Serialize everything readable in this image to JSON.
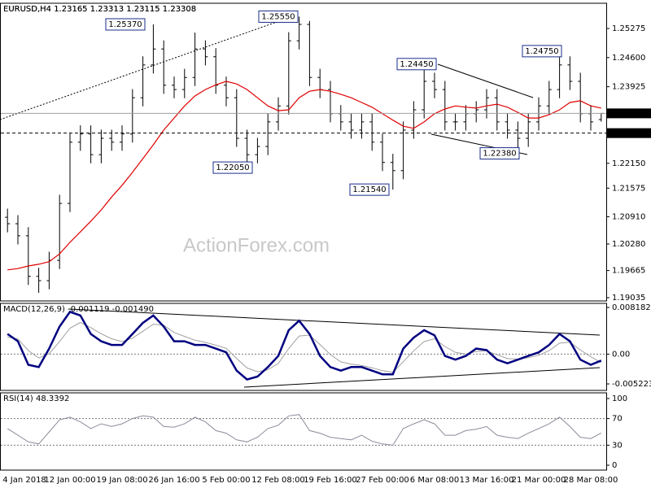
{
  "chart_data": [
    {
      "type": "ohlc",
      "title": "EURUSD,H4  1.23165 1.23313 1.23115 1.23308",
      "watermark": "ActionForex.com",
      "color": "#000000",
      "categories": [
        null,
        "4 Jan 2018",
        null,
        null,
        null,
        null,
        "12 Jan 00:00",
        null,
        null,
        null,
        null,
        "19 Jan 08:00",
        null,
        null,
        null,
        null,
        "26 Jan 16:00",
        null,
        null,
        null,
        null,
        "5 Feb 00:00",
        null,
        null,
        null,
        null,
        "12 Feb 08:00",
        null,
        null,
        null,
        null,
        "19 Feb 16:00",
        null,
        null,
        null,
        null,
        "27 Feb 00:00",
        null,
        null,
        null,
        null,
        "6 Mar 08:00",
        null,
        null,
        null,
        null,
        "13 Mar 16:00",
        null,
        null,
        null,
        null,
        "21 Mar 00:00",
        null,
        null,
        null,
        null,
        "28 Mar 08:00",
        null
      ],
      "open": [
        1.209,
        1.2075,
        1.2047,
        1.1953,
        1.1943,
        1.199,
        1.2122,
        1.2264,
        1.2283,
        1.2235,
        1.2273,
        1.2264,
        1.2283,
        1.2367,
        1.2443,
        1.248,
        1.2396,
        1.2386,
        1.2414,
        1.248,
        1.2462,
        1.2396,
        1.2367,
        1.2273,
        1.2235,
        1.2254,
        1.2311,
        1.2348,
        1.2499,
        1.2537,
        1.2414,
        1.2386,
        1.233,
        1.2311,
        1.2292,
        1.2311,
        1.2264,
        1.2217,
        1.2198,
        1.2292,
        1.2339,
        1.2405,
        1.2386,
        1.2311,
        1.2311,
        1.233,
        1.2339,
        1.2367,
        1.2311,
        1.2292,
        1.2273,
        1.2311,
        1.2348,
        1.2386,
        1.2443,
        1.2405,
        1.233,
        1.23165
      ],
      "high": [
        1.211,
        1.2095,
        1.2067,
        1.1973,
        1.201,
        1.2142,
        1.2284,
        1.2303,
        1.2303,
        1.2293,
        1.2293,
        1.2303,
        1.2387,
        1.2463,
        1.2537,
        1.25,
        1.2416,
        1.2434,
        1.2518,
        1.25,
        1.2482,
        1.2416,
        1.2387,
        1.2293,
        1.2274,
        1.2331,
        1.2368,
        1.2519,
        1.2555,
        1.2545,
        1.2434,
        1.2406,
        1.235,
        1.2331,
        1.2331,
        1.2331,
        1.2284,
        1.2237,
        1.2312,
        1.2359,
        1.2445,
        1.2425,
        1.2406,
        1.2331,
        1.235,
        1.2359,
        1.2387,
        1.2387,
        1.2331,
        1.2312,
        1.2331,
        1.2368,
        1.2406,
        1.2475,
        1.2463,
        1.2425,
        1.235,
        1.23313
      ],
      "low": [
        1.2055,
        1.2027,
        1.1933,
        1.1915,
        1.1923,
        1.197,
        1.2102,
        1.2244,
        1.2215,
        1.2215,
        1.2244,
        1.2244,
        1.2263,
        1.2347,
        1.2423,
        1.2376,
        1.2366,
        1.2366,
        1.2394,
        1.2442,
        1.2376,
        1.2347,
        1.2253,
        1.2205,
        1.2215,
        1.2234,
        1.2291,
        1.2328,
        1.2479,
        1.2394,
        1.2366,
        1.231,
        1.2291,
        1.2272,
        1.2272,
        1.2244,
        1.2197,
        1.2154,
        1.2178,
        1.2272,
        1.2319,
        1.2366,
        1.2291,
        1.2291,
        1.2291,
        1.231,
        1.2319,
        1.2291,
        1.2272,
        1.2238,
        1.2253,
        1.2291,
        1.2328,
        1.2366,
        1.2385,
        1.231,
        1.2291,
        1.23115
      ],
      "close": [
        1.2075,
        1.2047,
        1.1953,
        1.1943,
        1.199,
        1.2122,
        1.2264,
        1.2283,
        1.2235,
        1.2273,
        1.2264,
        1.2283,
        1.2367,
        1.2443,
        1.248,
        1.2396,
        1.2386,
        1.2414,
        1.248,
        1.2462,
        1.2396,
        1.2367,
        1.2273,
        1.2235,
        1.2254,
        1.2311,
        1.2348,
        1.2499,
        1.2537,
        1.2414,
        1.2386,
        1.233,
        1.2311,
        1.2292,
        1.2311,
        1.2264,
        1.2217,
        1.2198,
        1.2292,
        1.2339,
        1.2405,
        1.2386,
        1.2311,
        1.2311,
        1.233,
        1.2339,
        1.2367,
        1.2311,
        1.2292,
        1.2273,
        1.2311,
        1.2348,
        1.2386,
        1.2443,
        1.2405,
        1.233,
        1.2311,
        1.23308
      ],
      "moving_average": {
        "color": "#e00000",
        "values": [
          1.1968,
          1.1971,
          1.1977,
          1.1981,
          1.1987,
          1.2005,
          1.2032,
          1.2056,
          1.2081,
          1.2107,
          1.2137,
          1.2164,
          1.2194,
          1.2226,
          1.2258,
          1.2292,
          1.232,
          1.2348,
          1.2371,
          1.2386,
          1.2397,
          1.2405,
          1.2399,
          1.2386,
          1.2367,
          1.2348,
          1.2337,
          1.2339,
          1.2367,
          1.2382,
          1.2386,
          1.2382,
          1.2375,
          1.2367,
          1.2356,
          1.2345,
          1.233,
          1.2315,
          1.2301,
          1.2296,
          1.2311,
          1.233,
          1.2341,
          1.2348,
          1.2345,
          1.2343,
          1.2348,
          1.2352,
          1.2345,
          1.2333,
          1.232,
          1.232,
          1.2328,
          1.2339,
          1.2356,
          1.236,
          1.2348,
          1.2343
        ]
      },
      "ylim": [
        1.1896,
        1.2586
      ],
      "yticks": [
        1.25275,
        {
          "value": 1.246,
          "label": "1.24600"
        },
        1.23925,
        {
          "value": 1.2215,
          "label": "1.22150"
        },
        1.21575,
        {
          "value": 1.2091,
          "label": "1.20910"
        },
        {
          "value": 1.2028,
          "label": "1.20280"
        },
        1.19665,
        1.19035
      ],
      "current_price": 1.23308,
      "level_line": {
        "value": 1.2285,
        "label": "1.22850"
      },
      "annotations": [
        {
          "value": 1.2537,
          "label": "1.25370"
        },
        {
          "value": 1.2555,
          "label": "1.25550"
        },
        {
          "value": 1.2205,
          "label": "1.22050"
        },
        {
          "value": 1.2154,
          "label": "1.21540"
        },
        {
          "value": 1.2445,
          "label": "1.24450"
        },
        {
          "value": 1.2238,
          "label": "1.22380"
        },
        {
          "value": 1.2475,
          "label": "1.24750"
        }
      ]
    },
    {
      "type": "macd",
      "title": "MACD(12,26,9) -0.001119 -0.001490",
      "series": [
        {
          "color": "#000080",
          "values": [
            0.00354,
            0.00226,
            -0.00187,
            -0.00226,
            0.00097,
            0.00483,
            0.00741,
            0.00677,
            0.00354,
            0.00226,
            0.00161,
            0.00161,
            0.00354,
            0.00548,
            0.00677,
            0.00483,
            0.00226,
            0.00226,
            0.00161,
            0.00161,
            0.00097,
            0.00032,
            -0.0029,
            -0.00445,
            -0.00393,
            -0.00226,
            -0.00032,
            0.00419,
            0.00586,
            0.00354,
            -0.00032,
            -0.00226,
            -0.0029,
            -0.00226,
            -0.00226,
            -0.0029,
            -0.00354,
            -0.00354,
            0.00097,
            0.0029,
            0.00419,
            0.00329,
            -0.00032,
            -0.00097,
            -0.00032,
            0.00097,
            0.00071,
            -0.00097,
            -0.00161,
            -0.00097,
            -0.00032,
            0.00032,
            0.00161,
            0.00354,
            0.00226,
            -0.00097,
            -0.00187,
            -0.00112
          ]
        },
        {
          "color": "#a0a0a0",
          "values": [
            0.003,
            0.00267,
            0.00063,
            -0.00067,
            7e-05,
            0.00221,
            0.00455,
            0.00555,
            0.00465,
            0.00357,
            0.00269,
            0.0022,
            0.0028,
            0.00401,
            0.00525,
            0.00506,
            0.0038,
            0.00311,
            0.00244,
            0.00207,
            0.00157,
            0.00101,
            -0.00075,
            -0.00242,
            -0.0031,
            -0.00272,
            -0.00164,
            0.00098,
            0.00318,
            0.00334,
            0.00169,
            -9e-05,
            -0.00135,
            -0.00176,
            -0.00199,
            -0.0024,
            -0.00291,
            -0.00319,
            -0.00132,
            0.00058,
            0.0022,
            0.00269,
            0.00134,
            0.0003,
            2e-05,
            0.00045,
            0.00057,
            -0.00012,
            -0.00079,
            -0.00087,
            -0.00062,
            -0.0002,
            0.00061,
            0.00193,
            0.00208,
            0.00071,
            -0.00045,
            -0.00149
          ]
        }
      ],
      "ylim": [
        -0.00636,
        0.0089
      ],
      "yticks": [
        0.008182,
        {
          "value": 0,
          "label": "0.00"
        },
        -0.005223
      ]
    },
    {
      "type": "rsi",
      "title": "RSI(14) 48.3392",
      "color": "#8c8c9c",
      "values": [
        55,
        45,
        35,
        32,
        50,
        68,
        72,
        65,
        55,
        62,
        58,
        62,
        70,
        74,
        72,
        58,
        57,
        62,
        72,
        65,
        52,
        48,
        38,
        35,
        42,
        55,
        60,
        74,
        76,
        52,
        48,
        42,
        40,
        38,
        45,
        36,
        32,
        30,
        55,
        62,
        68,
        62,
        45,
        45,
        52,
        54,
        58,
        45,
        42,
        40,
        48,
        55,
        62,
        72,
        58,
        42,
        40,
        48.3392
      ],
      "ylim": [
        -7.3,
        108.5
      ],
      "yticks": [
        100,
        70,
        30,
        0
      ]
    }
  ]
}
